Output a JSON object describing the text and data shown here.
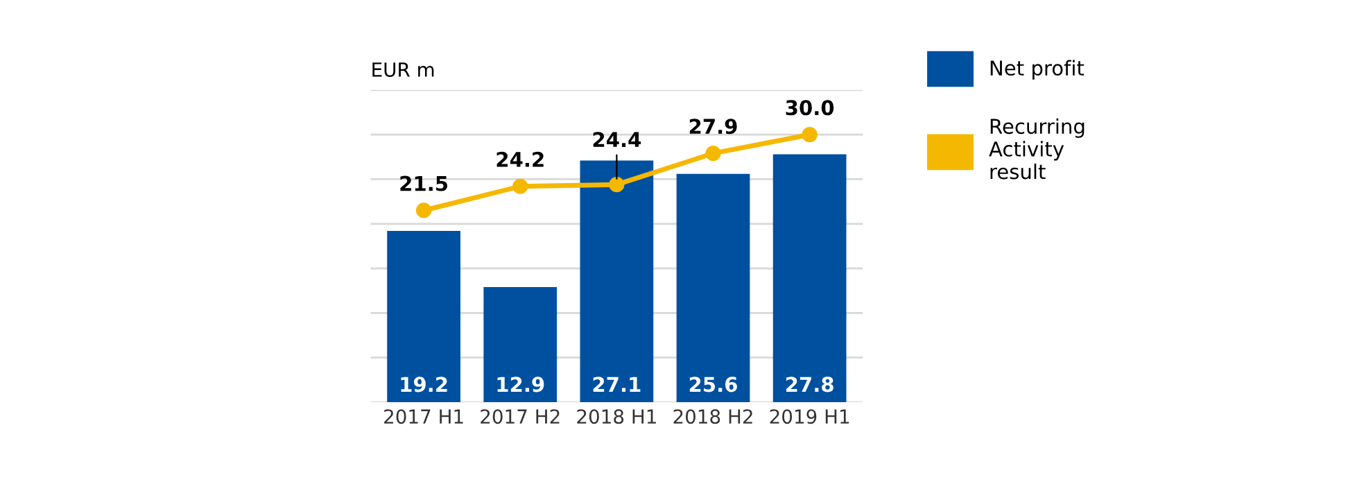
{
  "chart_data": {
    "type": "bar",
    "ylabel": "EUR m",
    "categories": [
      "2017 H1",
      "2017 H2",
      "2018 H1",
      "2018 H2",
      "2019 H1"
    ],
    "series": [
      {
        "name": "Net profit",
        "color": "#0050a0",
        "values": [
          19.2,
          12.9,
          27.1,
          25.6,
          27.8
        ]
      },
      {
        "name": "Recurring Activity result",
        "type": "line",
        "color": "#f5b800",
        "marker": "circle",
        "values": [
          21.5,
          24.2,
          24.4,
          27.9,
          30.0
        ],
        "value_labels": [
          "21.5",
          "24.2",
          "24.4",
          "27.9",
          "30.0"
        ]
      }
    ],
    "data_labels": true,
    "ylim": [
      0,
      35
    ],
    "yticks": [
      {
        "value": 0,
        "label": null
      },
      {
        "value": 5,
        "label": null
      },
      {
        "value": 10,
        "label": null
      },
      {
        "value": 15,
        "label": null
      },
      {
        "value": 20,
        "label": null
      },
      {
        "value": 25,
        "label": null
      },
      {
        "value": 30,
        "label": null
      },
      {
        "value": 35,
        "label": null
      }
    ],
    "tick_labels": "x",
    "grid": "y",
    "legend": "right"
  }
}
